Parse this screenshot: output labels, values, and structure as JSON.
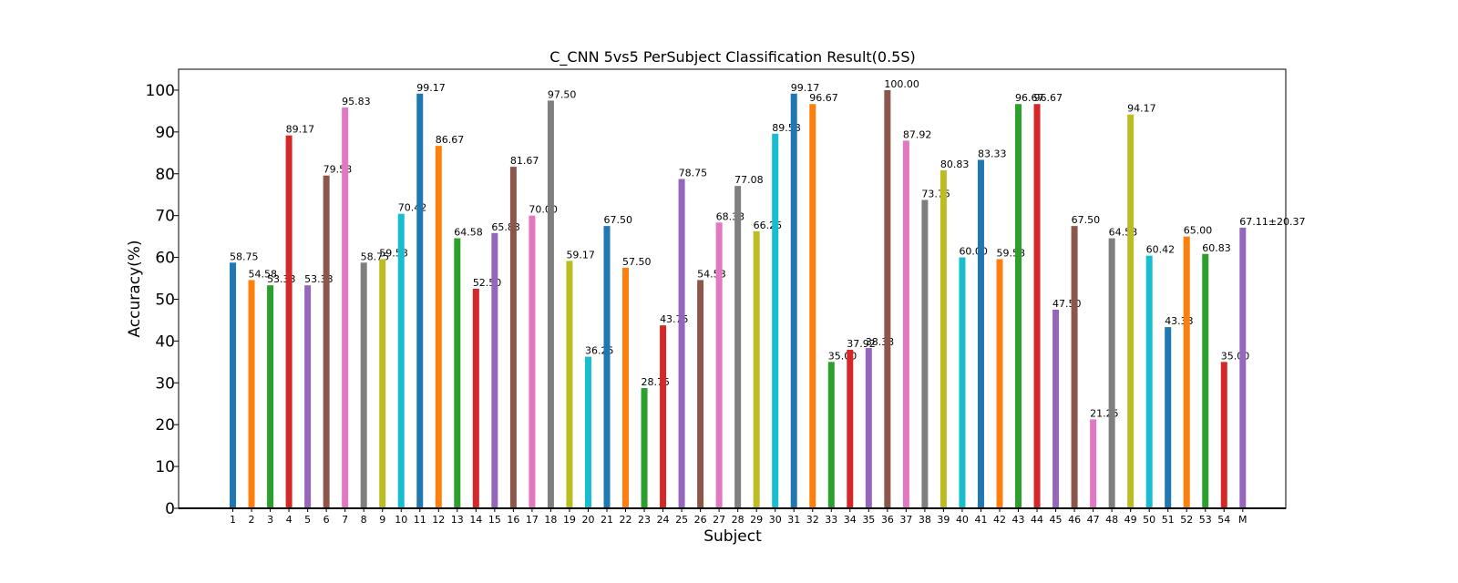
{
  "chart_data": {
    "type": "bar",
    "title": "C_CNN 5vs5 PerSubject Classification Result(0.5S)",
    "xlabel": "Subject",
    "ylabel": "Accuracy(%)",
    "ylim": [
      0,
      105
    ],
    "yticks": [
      0,
      10,
      20,
      30,
      40,
      50,
      60,
      70,
      80,
      90,
      100
    ],
    "grid": false,
    "legend": "none",
    "categories": [
      "1",
      "2",
      "3",
      "4",
      "5",
      "6",
      "7",
      "8",
      "9",
      "10",
      "11",
      "12",
      "13",
      "14",
      "15",
      "16",
      "17",
      "18",
      "19",
      "20",
      "21",
      "22",
      "23",
      "24",
      "25",
      "26",
      "27",
      "28",
      "29",
      "30",
      "31",
      "32",
      "33",
      "34",
      "35",
      "36",
      "37",
      "38",
      "39",
      "40",
      "41",
      "42",
      "43",
      "44",
      "45",
      "46",
      "47",
      "48",
      "49",
      "50",
      "51",
      "52",
      "53",
      "54",
      "M"
    ],
    "values": [
      58.75,
      54.58,
      53.33,
      89.17,
      53.33,
      79.58,
      95.83,
      58.75,
      59.58,
      70.42,
      99.17,
      86.67,
      64.58,
      52.5,
      65.83,
      81.67,
      70.0,
      97.5,
      59.17,
      36.25,
      67.5,
      57.5,
      28.75,
      43.75,
      78.75,
      54.58,
      68.33,
      77.08,
      66.25,
      89.58,
      99.17,
      96.67,
      35.0,
      37.92,
      38.33,
      100.0,
      87.92,
      73.75,
      80.83,
      60.0,
      83.33,
      59.58,
      96.67,
      96.67,
      47.5,
      67.5,
      21.25,
      64.58,
      94.17,
      60.42,
      43.33,
      65.0,
      60.83,
      35.0,
      67.11
    ],
    "data_labels": [
      "58.75",
      "54.58",
      "53.33",
      "89.17",
      "53.33",
      "79.58",
      "95.83",
      "58.75",
      "59.58",
      "70.42",
      "99.17",
      "86.67",
      "64.58",
      "52.50",
      "65.83",
      "81.67",
      "70.00",
      "97.50",
      "59.17",
      "36.25",
      "67.50",
      "57.50",
      "28.75",
      "43.75",
      "78.75",
      "54.58",
      "68.33",
      "77.08",
      "66.25",
      "89.58",
      "99.17",
      "96.67",
      "35.00",
      "37.92",
      "38.33",
      "100.00",
      "87.92",
      "73.75",
      "80.83",
      "60.00",
      "83.33",
      "59.58",
      "96.67",
      "96.67",
      "47.50",
      "67.50",
      "21.25",
      "64.58",
      "94.17",
      "60.42",
      "43.33",
      "65.00",
      "60.83",
      "35.00",
      "67.11±20.37"
    ],
    "highlight_label_color": "#ff0000",
    "colors": [
      "#1f77b4",
      "#ff7f0e",
      "#2ca02c",
      "#d62728",
      "#9467bd",
      "#8c564b",
      "#e377c2",
      "#7f7f7f",
      "#bcbd22",
      "#17becf"
    ]
  }
}
